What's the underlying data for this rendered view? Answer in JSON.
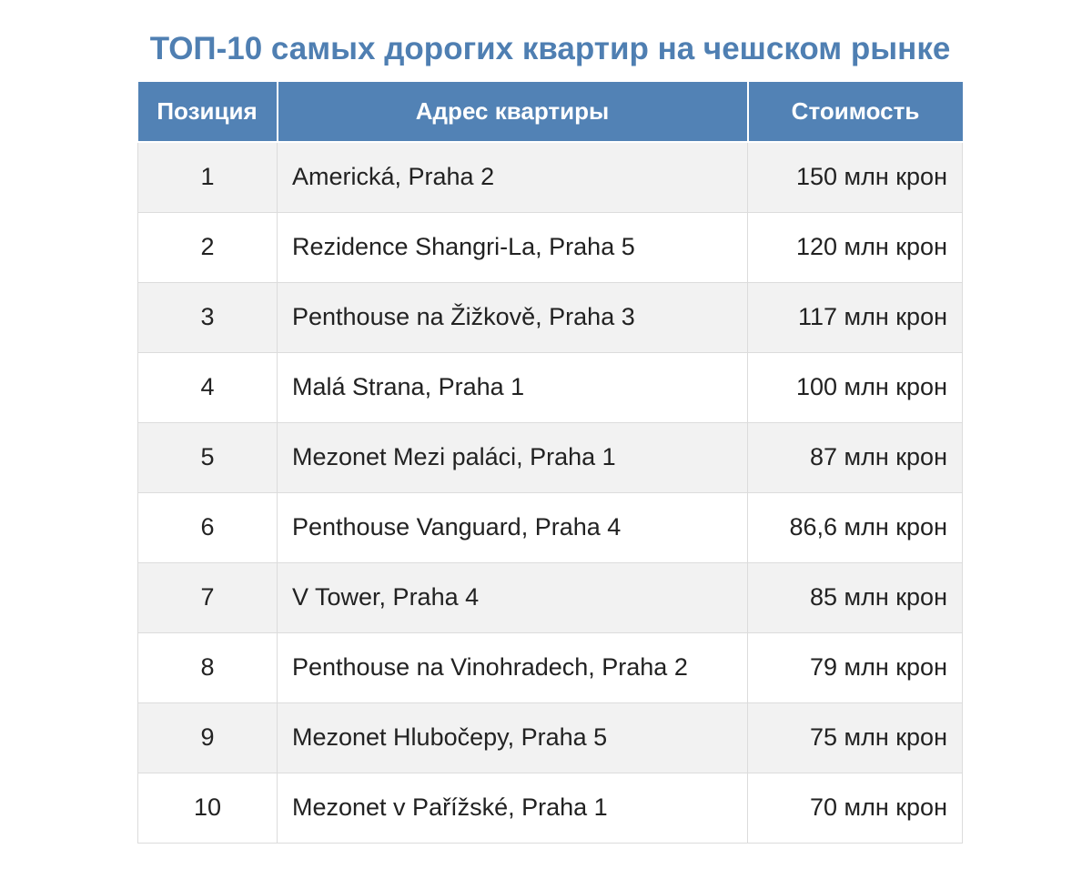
{
  "title": "ТОП-10 самых дорогих квартир на чешском рынке",
  "table": {
    "headers": [
      "Позиция",
      "Адрес квартиры",
      "Стоимость"
    ],
    "rows": [
      {
        "position": "1",
        "address": "Americká, Praha 2",
        "price": "150 млн крон"
      },
      {
        "position": "2",
        "address": "Rezidence Shangri-La, Praha 5",
        "price": "120 млн крон"
      },
      {
        "position": "3",
        "address": "Penthouse na Žižkově, Praha 3",
        "price": "117 млн крон"
      },
      {
        "position": "4",
        "address": "Malá Strana, Praha 1",
        "price": "100 млн крон"
      },
      {
        "position": "5",
        "address": "Mezonet Mezi paláci, Praha 1",
        "price": "87 млн крон"
      },
      {
        "position": "6",
        "address": "Penthouse Vanguard, Praha 4",
        "price": "86,6 млн крон"
      },
      {
        "position": "7",
        "address": "V Tower, Praha 4",
        "price": "85 млн крон"
      },
      {
        "position": "8",
        "address": "Penthouse na Vinohradech, Praha 2",
        "price": "79 млн крон"
      },
      {
        "position": "9",
        "address": "Mezonet Hlubočepy, Praha 5",
        "price": "75 млн крон"
      },
      {
        "position": "10",
        "address": "Mezonet v Pařížské, Praha 1",
        "price": "70 млн крон"
      }
    ]
  },
  "colors": {
    "title": "#4f7fb2",
    "header_bg": "#5282b5",
    "row_alt": "#f2f2f2"
  }
}
